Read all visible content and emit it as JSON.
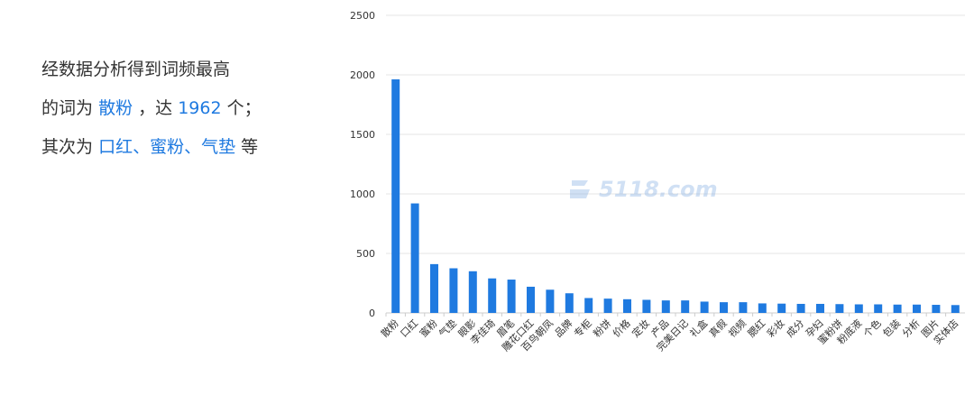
{
  "summary": {
    "line1": "经数据分析得到词频最高",
    "line2_prefix": "的词为",
    "line2_top_word": "散粉",
    "line2_mid": "，达",
    "line2_count": "1962",
    "line2_suffix": "个；",
    "line3_prefix": "其次为",
    "line3_words": "口红、蜜粉、气垫",
    "line3_suffix": "等"
  },
  "watermark": {
    "text": "5118.com"
  },
  "colors": {
    "bar": "#1f7ae0",
    "highlight": "#1f7ae0",
    "grid": "#e6e6e6",
    "axis_text": "#333333"
  },
  "chart_data": {
    "type": "bar",
    "title": "",
    "xlabel": "",
    "ylabel": "",
    "ylim": [
      0,
      2500
    ],
    "yticks": [
      0,
      500,
      1000,
      1500,
      2000,
      2500
    ],
    "grid": true,
    "categories": [
      "散粉",
      "口红",
      "蜜粉",
      "气垫",
      "眼影",
      "李佳琦",
      "眉笔",
      "雕花口红",
      "百鸟朝凤",
      "品牌",
      "专柜",
      "粉饼",
      "价格",
      "定妆",
      "产品",
      "完美日记",
      "礼盒",
      "真假",
      "视频",
      "腮红",
      "彩妆",
      "成分",
      "孕妇",
      "蜜粉饼",
      "粉底液",
      "个色",
      "包装",
      "分析",
      "图片",
      "实体店"
    ],
    "values": [
      1962,
      920,
      410,
      375,
      350,
      290,
      280,
      220,
      195,
      165,
      125,
      120,
      115,
      110,
      105,
      105,
      95,
      90,
      90,
      80,
      78,
      76,
      76,
      74,
      72,
      72,
      70,
      70,
      68,
      66
    ]
  }
}
